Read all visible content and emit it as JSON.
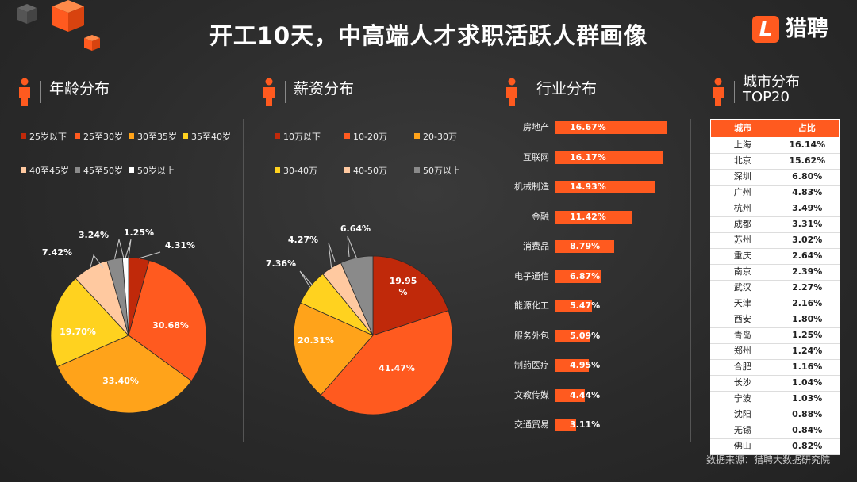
{
  "title": "开工10天，中高端人才求职活跃人群画像",
  "logo": {
    "mark": "L",
    "name": "猎聘"
  },
  "source": "数据来源：猎聘大数据研究院",
  "colors": {
    "accent": "#ff5a1f"
  },
  "sections": {
    "age": "年龄分布",
    "salary": "薪资分布",
    "industry": "行业分布",
    "city": "城市分布\nTOP20"
  },
  "chart_data": [
    {
      "type": "pie",
      "id": "age",
      "title": "年龄分布",
      "slices": [
        {
          "label": "25岁以下",
          "value": 4.31,
          "display": "4.31%",
          "color": "#c0290a"
        },
        {
          "label": "25至30岁",
          "value": 30.68,
          "display": "30.68%",
          "color": "#ff5a1f"
        },
        {
          "label": "30至35岁",
          "value": 33.4,
          "display": "33.40%",
          "color": "#ffa31a"
        },
        {
          "label": "35至40岁",
          "value": 19.7,
          "display": "19.70%",
          "color": "#ffd21f"
        },
        {
          "label": "40至45岁",
          "value": 7.42,
          "display": "7.42%",
          "color": "#ffc9a0"
        },
        {
          "label": "45至50岁",
          "value": 3.24,
          "display": "3.24%",
          "color": "#8a8a8a"
        },
        {
          "label": "50岁以上",
          "value": 1.25,
          "display": "1.25%",
          "color": "#ffffff"
        }
      ],
      "legend": "top"
    },
    {
      "type": "pie",
      "id": "salary",
      "title": "薪资分布",
      "slices": [
        {
          "label": "10万以下",
          "value": 19.95,
          "display": "19.95\n%",
          "color": "#c0290a"
        },
        {
          "label": "10-20万",
          "value": 41.47,
          "display": "41.47%",
          "color": "#ff5a1f"
        },
        {
          "label": "20-30万",
          "value": 20.31,
          "display": "20.31%",
          "color": "#ffa31a"
        },
        {
          "label": "30-40万",
          "value": 7.36,
          "display": "7.36%",
          "color": "#ffd21f"
        },
        {
          "label": "40-50万",
          "value": 4.27,
          "display": "4.27%",
          "color": "#ffc9a0"
        },
        {
          "label": "50万以上",
          "value": 6.64,
          "display": "6.64%",
          "color": "#8a8a8a"
        }
      ],
      "legend": "top"
    },
    {
      "type": "bar",
      "id": "industry",
      "title": "行业分布",
      "orientation": "horizontal",
      "categories": [
        "房地产",
        "互联网",
        "机械制造",
        "金融",
        "消费品",
        "电子通信",
        "能源化工",
        "服务外包",
        "制药医疗",
        "文教传媒",
        "交通贸易"
      ],
      "values": [
        16.67,
        16.17,
        14.93,
        11.42,
        8.79,
        6.87,
        5.47,
        5.09,
        4.95,
        4.44,
        3.11
      ],
      "labels": [
        "16.67%",
        "16.17%",
        "14.93%",
        "11.42%",
        "8.79%",
        "6.87%",
        "5.47%",
        "5.09%",
        "4.95%",
        "4.44%",
        "3.11%"
      ]
    },
    {
      "type": "table",
      "id": "city",
      "title": "城市分布TOP20",
      "columns": [
        "城市",
        "占比"
      ],
      "rows": [
        [
          "上海",
          "16.14%"
        ],
        [
          "北京",
          "15.62%"
        ],
        [
          "深圳",
          "6.80%"
        ],
        [
          "广州",
          "4.83%"
        ],
        [
          "杭州",
          "3.49%"
        ],
        [
          "成都",
          "3.31%"
        ],
        [
          "苏州",
          "3.02%"
        ],
        [
          "重庆",
          "2.64%"
        ],
        [
          "南京",
          "2.39%"
        ],
        [
          "武汉",
          "2.27%"
        ],
        [
          "天津",
          "2.16%"
        ],
        [
          "西安",
          "1.80%"
        ],
        [
          "青岛",
          "1.25%"
        ],
        [
          "郑州",
          "1.24%"
        ],
        [
          "合肥",
          "1.16%"
        ],
        [
          "长沙",
          "1.04%"
        ],
        [
          "宁波",
          "1.03%"
        ],
        [
          "沈阳",
          "0.88%"
        ],
        [
          "无锡",
          "0.84%"
        ],
        [
          "佛山",
          "0.82%"
        ]
      ]
    }
  ]
}
